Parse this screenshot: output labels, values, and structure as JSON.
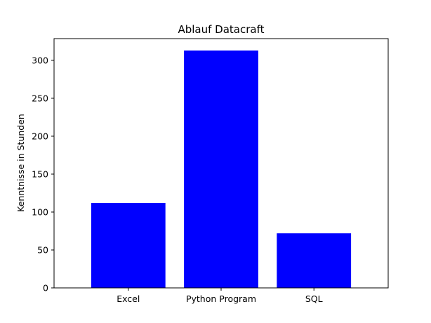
{
  "chart_data": {
    "type": "bar",
    "title": "Ablauf Datacraft",
    "xlabel": "",
    "ylabel": "Kenntnisse in Stunden",
    "categories": [
      "Excel",
      "Python Program",
      "SQL"
    ],
    "values": [
      112,
      313,
      72
    ],
    "ylim": [
      0,
      328.65
    ],
    "yticks": [
      0,
      50,
      100,
      150,
      200,
      250,
      300
    ],
    "ytick_labels": [
      "0",
      "50",
      "100",
      "150",
      "200",
      "250",
      "300"
    ],
    "grid": false,
    "legend": "none",
    "bar_color": "#0000ff"
  }
}
